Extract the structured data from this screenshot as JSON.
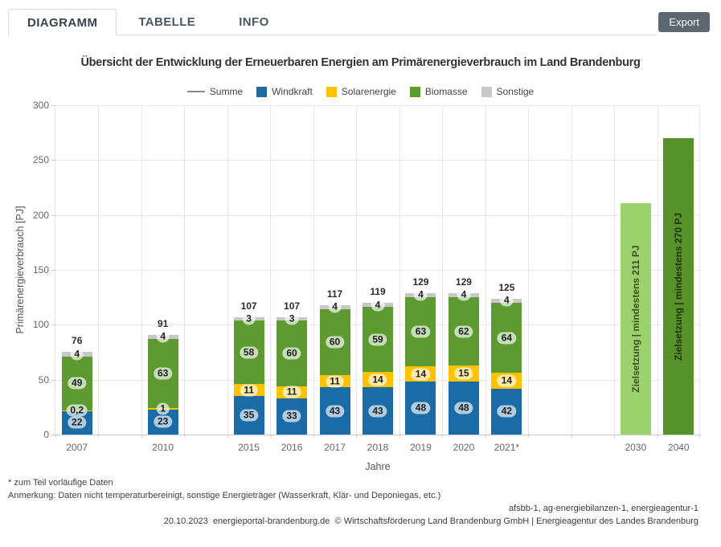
{
  "header": {
    "tabs": [
      {
        "label": "DIAGRAMM",
        "active": true
      },
      {
        "label": "TABELLE",
        "active": false
      },
      {
        "label": "INFO",
        "active": false
      }
    ],
    "export_label": "Export"
  },
  "chart_data": {
    "type": "bar",
    "stacked": true,
    "title": "Übersicht der Entwicklung der Erneuerbaren Energien am Primärenergieverbrauch im Land Brandenburg",
    "ylabel": "Primärenergieverbrauch [PJ]",
    "xlabel": "Jahre",
    "ylim": [
      0,
      300
    ],
    "yticks": [
      0,
      50,
      100,
      150,
      200,
      250,
      300
    ],
    "grid": true,
    "legend_position": "top",
    "legend": [
      {
        "label": "Summe",
        "type": "line",
        "color": "#8c8c8c"
      },
      {
        "label": "Windkraft",
        "type": "box",
        "color": "#1a6ba6"
      },
      {
        "label": "Solarenergie",
        "type": "box",
        "color": "#fdc303"
      },
      {
        "label": "Biomasse",
        "type": "box",
        "color": "#5d9a31"
      },
      {
        "label": "Sonstige",
        "type": "box",
        "color": "#c7c7c7"
      }
    ],
    "colors": {
      "windkraft": "#1a6ba6",
      "solarenergie": "#fdc303",
      "biomasse": "#5d9a31",
      "sonstige": "#c7c7c7"
    },
    "x_slots": [
      "2007",
      "",
      "2010",
      "",
      "2015",
      "2016",
      "2017",
      "2018",
      "2019",
      "2020",
      "2021*",
      "",
      "",
      "2030",
      "2040"
    ],
    "series_order": [
      "windkraft",
      "solarenergie",
      "biomasse",
      "sonstige"
    ],
    "bars": [
      {
        "year": "2007",
        "total": 76,
        "total_label": "76",
        "segments": [
          {
            "name": "windkraft",
            "value": 22,
            "label": "22"
          },
          {
            "name": "solarenergie",
            "value": 0.2,
            "label": "0,2"
          },
          {
            "name": "biomasse",
            "value": 49,
            "label": "49"
          },
          {
            "name": "sonstige",
            "value": 4,
            "label": "4"
          }
        ]
      },
      {
        "year": "2010",
        "total": 91,
        "total_label": "91",
        "segments": [
          {
            "name": "windkraft",
            "value": 23,
            "label": "23"
          },
          {
            "name": "solarenergie",
            "value": 1,
            "label": "1"
          },
          {
            "name": "biomasse",
            "value": 63,
            "label": "63"
          },
          {
            "name": "sonstige",
            "value": 4,
            "label": "4"
          }
        ]
      },
      {
        "year": "2015",
        "total": 107,
        "total_label": "107",
        "segments": [
          {
            "name": "windkraft",
            "value": 35,
            "label": "35"
          },
          {
            "name": "solarenergie",
            "value": 11,
            "label": "11"
          },
          {
            "name": "biomasse",
            "value": 58,
            "label": "58"
          },
          {
            "name": "sonstige",
            "value": 3,
            "label": "3"
          }
        ]
      },
      {
        "year": "2016",
        "total": 107,
        "total_label": "107",
        "segments": [
          {
            "name": "windkraft",
            "value": 33,
            "label": "33"
          },
          {
            "name": "solarenergie",
            "value": 11,
            "label": "11"
          },
          {
            "name": "biomasse",
            "value": 60,
            "label": "60"
          },
          {
            "name": "sonstige",
            "value": 3,
            "label": "3"
          }
        ]
      },
      {
        "year": "2017",
        "total": 117,
        "total_label": "117",
        "segments": [
          {
            "name": "windkraft",
            "value": 43,
            "label": "43"
          },
          {
            "name": "solarenergie",
            "value": 11,
            "label": "11"
          },
          {
            "name": "biomasse",
            "value": 60,
            "label": "60"
          },
          {
            "name": "sonstige",
            "value": 4,
            "label": "4"
          }
        ]
      },
      {
        "year": "2018",
        "total": 119,
        "total_label": "119",
        "segments": [
          {
            "name": "windkraft",
            "value": 43,
            "label": "43"
          },
          {
            "name": "solarenergie",
            "value": 14,
            "label": "14"
          },
          {
            "name": "biomasse",
            "value": 59,
            "label": "59"
          },
          {
            "name": "sonstige",
            "value": 4,
            "label": "4"
          }
        ]
      },
      {
        "year": "2019",
        "total": 129,
        "total_label": "129",
        "segments": [
          {
            "name": "windkraft",
            "value": 48,
            "label": "48"
          },
          {
            "name": "solarenergie",
            "value": 14,
            "label": "14"
          },
          {
            "name": "biomasse",
            "value": 63,
            "label": "63"
          },
          {
            "name": "sonstige",
            "value": 4,
            "label": "4"
          }
        ]
      },
      {
        "year": "2020",
        "total": 129,
        "total_label": "129",
        "segments": [
          {
            "name": "windkraft",
            "value": 48,
            "label": "48"
          },
          {
            "name": "solarenergie",
            "value": 15,
            "label": "15"
          },
          {
            "name": "biomasse",
            "value": 62,
            "label": "62"
          },
          {
            "name": "sonstige",
            "value": 4,
            "label": "4"
          }
        ]
      },
      {
        "year": "2021*",
        "total": 125,
        "total_label": "125",
        "segments": [
          {
            "name": "windkraft",
            "value": 42,
            "label": "42"
          },
          {
            "name": "solarenergie",
            "value": 14,
            "label": "14"
          },
          {
            "name": "biomasse",
            "value": 64,
            "label": "64"
          },
          {
            "name": "sonstige",
            "value": 4,
            "label": "4"
          }
        ]
      }
    ],
    "targets": [
      {
        "year": "2030",
        "value": 211,
        "label": "Zielsetzung | mindestens 211 PJ",
        "color": "#9cd26e",
        "text_color": "#3c4f1e"
      },
      {
        "year": "2040",
        "value": 270,
        "label": "Zielsetzung | mindestens 270 PJ",
        "color": "#57912a",
        "text_color": "#1f3309"
      }
    ]
  },
  "footnotes": [
    "* zum Teil vorläufige Daten",
    "Anmerkung: Daten nicht temperaturbereinigt, sonstige Energieträger (Wasserkraft, Klär- und Deponiegas, etc.)"
  ],
  "attribution": [
    "afsbb-1, ag-energiebilanzen-1, energieagentur-1",
    "20.10.2023  energieportal-brandenburg.de  © Wirtschaftsförderung Land Brandenburg GmbH | Energieagentur des Landes Brandenburg"
  ]
}
